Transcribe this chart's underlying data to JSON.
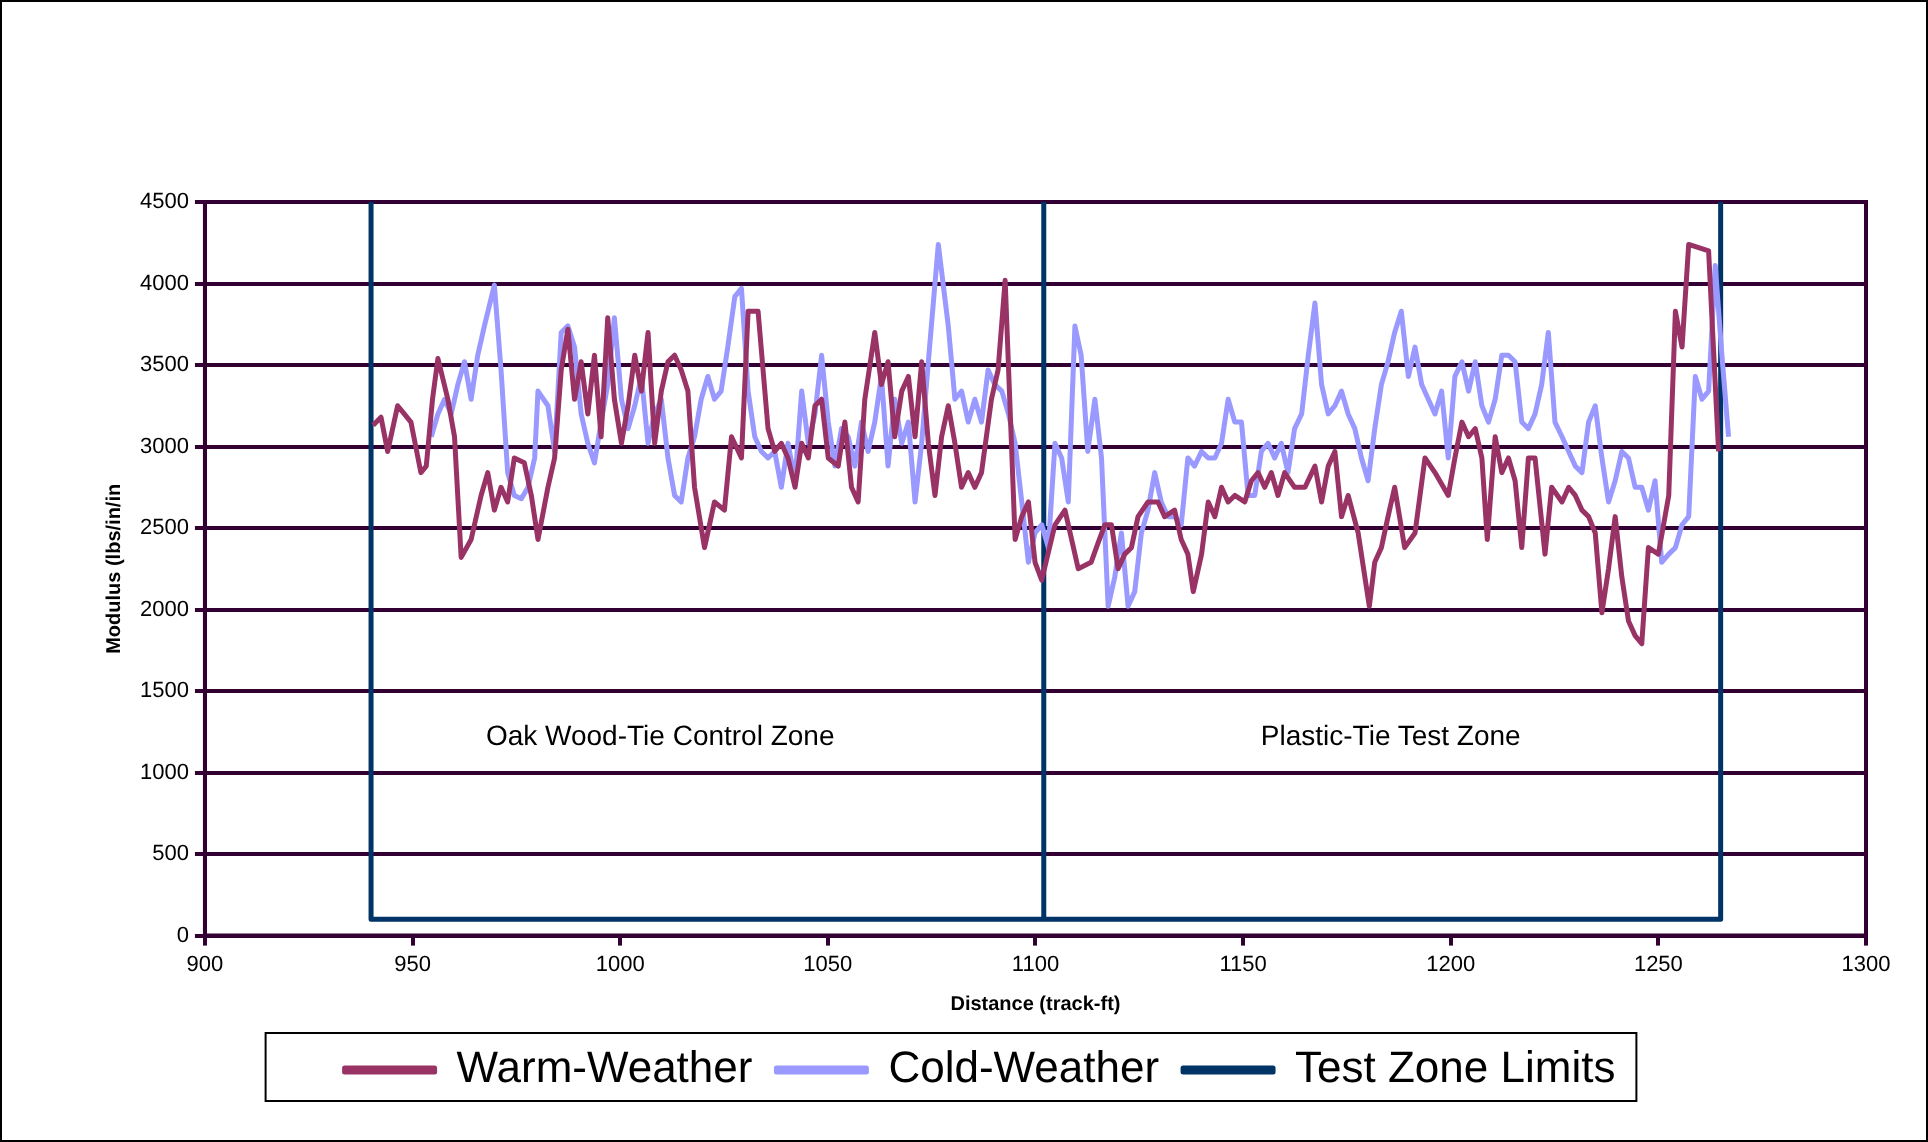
{
  "chart_data": {
    "type": "line",
    "xlabel": "Distance (track-ft)",
    "ylabel": "Modulus (lbs/in/in",
    "xlim": [
      900,
      1300
    ],
    "xticks": [
      900,
      950,
      1000,
      1050,
      1100,
      1150,
      1200,
      1250,
      1300
    ],
    "ylim": [
      0,
      4500
    ],
    "yticks": [
      0,
      500,
      1000,
      1500,
      2000,
      2500,
      3000,
      3500,
      4000,
      4500
    ],
    "grid": "y",
    "legend": "bottom",
    "marker": "none",
    "line_style": "solid",
    "annotations": [
      "Oak Wood-Tie Control Zone",
      "Plastic-Tie Test Zone"
    ],
    "series": [
      {
        "name": "Warm-Weather",
        "color": "#993366",
        "x": [
          940.5,
          942.4,
          944.0,
          946.4,
          948.0,
          949.6,
          952.0,
          953.3,
          954.8,
          956.1,
          958.5,
          960.1,
          961.7,
          964.1,
          966.5,
          968.1,
          969.7,
          971.3,
          972.9,
          974.5,
          976.9,
          978.6,
          980.2,
          982.6,
          984.2,
          985.8,
          987.4,
          989.0,
          990.6,
          992.2,
          993.8,
          995.4,
          997.0,
          998.6,
          1000.3,
          1001.9,
          1003.5,
          1005.1,
          1006.7,
          1008.3,
          1009.9,
          1011.5,
          1013.1,
          1014.7,
          1016.3,
          1017.9,
          1020.3,
          1022.7,
          1025.1,
          1026.8,
          1029.2,
          1030.8,
          1033.2,
          1035.6,
          1037.2,
          1038.8,
          1040.4,
          1042.1,
          1043.7,
          1045.3,
          1046.9,
          1048.5,
          1050.1,
          1052.5,
          1054.1,
          1055.7,
          1057.3,
          1058.9,
          1061.3,
          1062.9,
          1064.5,
          1066.1,
          1067.8,
          1069.4,
          1071.0,
          1072.6,
          1074.2,
          1075.8,
          1077.4,
          1079.0,
          1080.6,
          1082.2,
          1083.8,
          1085.4,
          1087.0,
          1089.4,
          1091.0,
          1092.7,
          1095.1,
          1096.7,
          1098.3,
          1099.9,
          1101.5,
          1104.7,
          1107.1,
          1110.3,
          1113.4,
          1115.1,
          1116.7,
          1118.3,
          1119.9,
          1121.5,
          1123.1,
          1124.7,
          1127.1,
          1129.5,
          1131.1,
          1133.5,
          1135.1,
          1136.7,
          1138.0,
          1140.0,
          1141.6,
          1143.2,
          1144.8,
          1146.4,
          1148.0,
          1150.4,
          1152.0,
          1153.6,
          1155.2,
          1156.8,
          1158.4,
          1160.0,
          1162.4,
          1164.9,
          1167.3,
          1168.9,
          1170.5,
          1172.1,
          1173.7,
          1175.3,
          1177.7,
          1180.4,
          1181.7,
          1183.3,
          1184.9,
          1186.5,
          1188.9,
          1191.4,
          1193.8,
          1196.2,
          1199.4,
          1201.0,
          1202.7,
          1204.3,
          1205.9,
          1207.5,
          1208.8,
          1210.7,
          1212.3,
          1213.9,
          1215.5,
          1217.1,
          1218.7,
          1220.3,
          1222.7,
          1224.3,
          1226.8,
          1228.4,
          1230.0,
          1231.6,
          1233.2,
          1234.8,
          1236.4,
          1238.0,
          1239.6,
          1241.2,
          1242.8,
          1244.4,
          1246.0,
          1247.6,
          1250.0,
          1252.5,
          1254.1,
          1255.7,
          1257.3,
          1262.1,
          1264.5
        ],
        "values": [
          3130,
          3180,
          2970,
          3250,
          3200,
          3150,
          2840,
          2880,
          3290,
          3540,
          3290,
          3060,
          2320,
          2430,
          2700,
          2840,
          2610,
          2750,
          2660,
          2930,
          2900,
          2700,
          2430,
          2750,
          2930,
          3470,
          3720,
          3290,
          3520,
          3200,
          3560,
          3060,
          3790,
          3290,
          3020,
          3250,
          3560,
          3340,
          3700,
          3020,
          3340,
          3520,
          3560,
          3470,
          3340,
          2750,
          2380,
          2660,
          2610,
          3060,
          2930,
          3830,
          3830,
          3110,
          2970,
          3020,
          2930,
          2750,
          3020,
          2930,
          3250,
          3290,
          2930,
          2880,
          3150,
          2750,
          2660,
          3290,
          3700,
          3380,
          3520,
          3060,
          3340,
          3430,
          3060,
          3520,
          3020,
          2700,
          3060,
          3250,
          3020,
          2750,
          2840,
          2750,
          2840,
          3290,
          3470,
          4020,
          2430,
          2570,
          2660,
          2290,
          2180,
          2520,
          2610,
          2250,
          2290,
          2410,
          2520,
          2520,
          2250,
          2340,
          2380,
          2570,
          2660,
          2660,
          2570,
          2610,
          2430,
          2340,
          2110,
          2340,
          2660,
          2570,
          2750,
          2660,
          2700,
          2660,
          2790,
          2840,
          2750,
          2840,
          2700,
          2840,
          2750,
          2750,
          2880,
          2660,
          2880,
          2970,
          2570,
          2700,
          2470,
          2020,
          2290,
          2380,
          2570,
          2750,
          2380,
          2470,
          2930,
          2840,
          2700,
          2930,
          3150,
          3060,
          3110,
          2930,
          2430,
          3060,
          2840,
          2930,
          2790,
          2380,
          2930,
          2930,
          2340,
          2750,
          2660,
          2750,
          2700,
          2610,
          2570,
          2470,
          1980,
          2250,
          2570,
          2200,
          1930,
          1840,
          1790,
          2380,
          2340,
          2700,
          3830,
          3610,
          4240,
          4200,
          2970
        ]
      },
      {
        "name": "Cold-Weather",
        "color": "#9999ff",
        "x": [
          954.5,
          956.1,
          957.7,
          959.3,
          960.9,
          962.5,
          964.1,
          965.7,
          967.3,
          969.7,
          971.3,
          972.9,
          974.5,
          976.2,
          977.8,
          979.4,
          980.2,
          982.6,
          984.2,
          985.8,
          987.4,
          989.0,
          990.6,
          992.2,
          993.8,
          995.4,
          997.0,
          998.6,
          1000.3,
          1001.9,
          1003.5,
          1005.1,
          1006.7,
          1008.3,
          1009.9,
          1011.5,
          1013.1,
          1014.7,
          1016.3,
          1017.9,
          1019.5,
          1021.1,
          1022.7,
          1024.3,
          1025.9,
          1027.6,
          1029.2,
          1030.8,
          1032.4,
          1034.0,
          1035.6,
          1037.2,
          1038.8,
          1040.4,
          1042.1,
          1043.7,
          1045.3,
          1046.9,
          1048.5,
          1050.1,
          1051.7,
          1053.3,
          1054.9,
          1056.5,
          1058.1,
          1059.7,
          1061.3,
          1062.9,
          1064.5,
          1066.1,
          1067.8,
          1069.4,
          1071.0,
          1072.6,
          1074.2,
          1076.6,
          1079.0,
          1080.6,
          1082.2,
          1083.8,
          1085.4,
          1087.0,
          1088.6,
          1090.2,
          1091.9,
          1093.5,
          1095.1,
          1096.7,
          1098.3,
          1099.9,
          1101.5,
          1103.1,
          1104.7,
          1106.3,
          1107.9,
          1109.5,
          1111.0,
          1112.6,
          1114.3,
          1115.9,
          1117.5,
          1119.1,
          1120.7,
          1122.3,
          1123.9,
          1125.5,
          1127.1,
          1128.7,
          1130.3,
          1131.9,
          1133.5,
          1135.1,
          1136.7,
          1138.3,
          1140.0,
          1141.6,
          1143.2,
          1144.8,
          1146.4,
          1148.0,
          1149.6,
          1151.2,
          1152.8,
          1154.4,
          1156.0,
          1157.6,
          1159.2,
          1160.8,
          1162.4,
          1164.1,
          1165.7,
          1167.3,
          1168.9,
          1170.5,
          1172.1,
          1173.7,
          1175.3,
          1176.9,
          1178.5,
          1180.1,
          1181.7,
          1183.3,
          1184.9,
          1186.5,
          1188.1,
          1189.8,
          1191.4,
          1193.0,
          1194.6,
          1196.2,
          1197.8,
          1199.4,
          1201.0,
          1202.7,
          1204.3,
          1205.9,
          1207.5,
          1209.1,
          1210.7,
          1212.3,
          1213.9,
          1215.5,
          1217.1,
          1218.7,
          1220.3,
          1221.9,
          1223.5,
          1225.1,
          1226.8,
          1228.4,
          1230.0,
          1231.6,
          1233.2,
          1234.8,
          1236.4,
          1238.0,
          1239.6,
          1241.2,
          1242.8,
          1244.4,
          1246.0,
          1247.6,
          1249.2,
          1250.8,
          1252.5,
          1254.1,
          1255.7,
          1257.3,
          1258.9,
          1260.5,
          1262.1,
          1263.7,
          1265.3,
          1266.9
        ],
        "values": [
          3060,
          3200,
          3290,
          3200,
          3380,
          3520,
          3290,
          3560,
          3740,
          3990,
          3470,
          2840,
          2700,
          2680,
          2750,
          2930,
          3340,
          3250,
          2970,
          3700,
          3740,
          3610,
          3200,
          3020,
          2900,
          3150,
          3380,
          3790,
          3290,
          3110,
          3250,
          3430,
          3020,
          3200,
          3290,
          2930,
          2700,
          2660,
          2930,
          3060,
          3290,
          3430,
          3290,
          3340,
          3610,
          3920,
          3970,
          3340,
          3060,
          2970,
          2930,
          2970,
          2750,
          3020,
          2790,
          3340,
          3020,
          3200,
          3560,
          3150,
          2880,
          3110,
          3060,
          2880,
          3150,
          2970,
          3150,
          3430,
          2880,
          3290,
          3020,
          3150,
          2660,
          3020,
          3520,
          4240,
          3740,
          3290,
          3340,
          3150,
          3290,
          3150,
          3470,
          3380,
          3340,
          3200,
          3020,
          2660,
          2290,
          2470,
          2520,
          2380,
          3020,
          2930,
          2660,
          3740,
          3560,
          2970,
          3290,
          2930,
          2020,
          2200,
          2470,
          2020,
          2110,
          2470,
          2610,
          2840,
          2660,
          2570,
          2570,
          2520,
          2930,
          2880,
          2970,
          2930,
          2930,
          3020,
          3290,
          3150,
          3150,
          2700,
          2700,
          2970,
          3020,
          2930,
          3020,
          2840,
          3110,
          3200,
          3560,
          3880,
          3380,
          3200,
          3250,
          3340,
          3200,
          3110,
          2930,
          2790,
          3110,
          3380,
          3520,
          3700,
          3830,
          3430,
          3610,
          3380,
          3290,
          3200,
          3340,
          2930,
          3430,
          3520,
          3340,
          3520,
          3250,
          3150,
          3290,
          3560,
          3560,
          3520,
          3150,
          3110,
          3200,
          3380,
          3700,
          3150,
          3060,
          2970,
          2880,
          2840,
          3150,
          3250,
          2930,
          2660,
          2790,
          2970,
          2930,
          2750,
          2750,
          2610,
          2790,
          2290,
          2340,
          2380,
          2520,
          2570,
          3430,
          3290,
          3340,
          4110,
          3560,
          3060
        ]
      },
      {
        "name": "Test Zone Limits",
        "color": "#003366",
        "x": [
          940,
          940,
          1102,
          1102,
          1102,
          1265,
          1265
        ],
        "values": [
          4500,
          100,
          100,
          4500,
          100,
          100,
          4500
        ]
      }
    ]
  }
}
